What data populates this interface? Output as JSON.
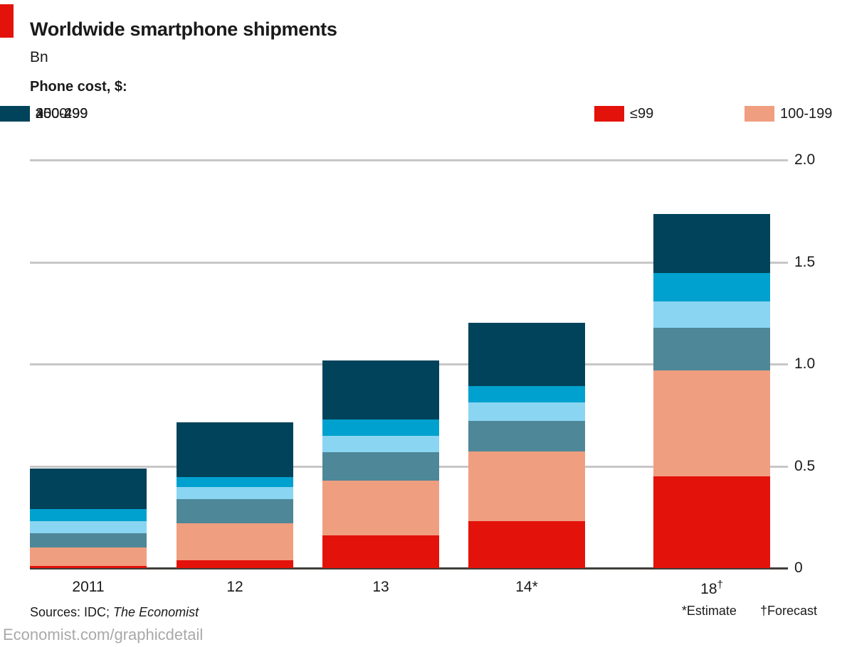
{
  "page": {
    "title": "Worldwide smartphone shipments",
    "subtitle": "Bn",
    "legend_title": "Phone cost, $:",
    "sources_prefix": "Sources: IDC; ",
    "sources_italic": "The Economist",
    "footnote_estimate": "*Estimate",
    "footnote_forecast": "†Forecast",
    "footer": "Economist.com/graphicdetail"
  },
  "colors": {
    "accent_red": "#e3120b",
    "gridline": "#c7c7c7",
    "baseline": "#3f3e3a",
    "text": "#1a1a1a",
    "footer_gray": "#a9a9a9"
  },
  "chart_data": {
    "type": "bar",
    "stacked": true,
    "title": "Worldwide smartphone shipments",
    "ylabel": "Bn",
    "xlabel": "",
    "grid": true,
    "legend_position": "top",
    "ylim": [
      0,
      2.0
    ],
    "yticks": [
      0,
      0.5,
      1.0,
      1.5,
      2.0
    ],
    "ytick_labels": [
      "0",
      "0.5",
      "1.0",
      "1.5",
      "2.0"
    ],
    "categories": [
      "2011",
      "12",
      "13",
      "14*",
      "18†"
    ],
    "categories_display": [
      {
        "text": "2011",
        "sup": ""
      },
      {
        "text": "12",
        "sup": ""
      },
      {
        "text": "13",
        "sup": ""
      },
      {
        "text": "14*",
        "sup": ""
      },
      {
        "text": "18",
        "sup": "†"
      }
    ],
    "series": [
      {
        "name": "≤99",
        "color": "#e3120b",
        "values": [
          0.01,
          0.04,
          0.16,
          0.23,
          0.45
        ]
      },
      {
        "name": "100-199",
        "color": "#f09e80",
        "values": [
          0.09,
          0.18,
          0.27,
          0.34,
          0.52
        ]
      },
      {
        "name": "200-299",
        "color": "#4e8798",
        "values": [
          0.07,
          0.12,
          0.14,
          0.15,
          0.21
        ]
      },
      {
        "name": "300-499",
        "color": "#8ad5f1",
        "values": [
          0.06,
          0.06,
          0.08,
          0.09,
          0.13
        ]
      },
      {
        "name": "400-499",
        "color": "#00a1ce",
        "values": [
          0.06,
          0.05,
          0.08,
          0.08,
          0.14
        ]
      },
      {
        "name": "≥500",
        "color": "#00435a",
        "values": [
          0.2,
          0.27,
          0.29,
          0.31,
          0.29
        ]
      }
    ]
  }
}
